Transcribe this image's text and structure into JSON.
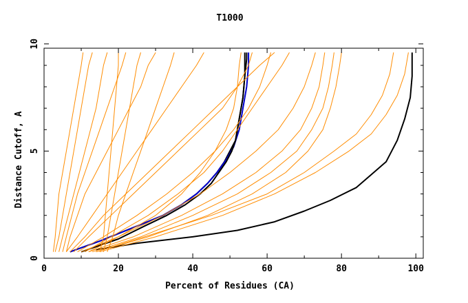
{
  "chart_data": {
    "type": "line",
    "title": "T1000",
    "xlabel": "Percent of Residues (CA)",
    "ylabel": "Distance Cutoff, A",
    "xlim": [
      0,
      102
    ],
    "ylim": [
      0,
      9.8
    ],
    "x_ticks": [
      0,
      20,
      40,
      60,
      80,
      100
    ],
    "y_ticks": [
      0,
      5,
      10
    ],
    "grid": false,
    "colors": {
      "orange": "#ff8c00",
      "black": "#000000",
      "blue": "#0000cc",
      "axis": "#000000",
      "background": "#ffffff"
    },
    "series": [
      {
        "color": "black",
        "x": [
          7,
          15,
          25,
          32,
          37,
          41,
          44,
          46.5,
          48.5,
          50,
          51.5,
          52.5,
          53.5,
          54,
          54.5,
          54.5
        ],
        "y": [
          0.3,
          0.8,
          1.5,
          2.0,
          2.5,
          3.0,
          3.5,
          4.0,
          4.5,
          5.0,
          5.5,
          6.5,
          7.5,
          8.5,
          9.3,
          9.6
        ]
      },
      {
        "color": "blue",
        "x": [
          7,
          15,
          25,
          32,
          37,
          41,
          44,
          46.5,
          49,
          51,
          52.5,
          53.5,
          54.5,
          55,
          55
        ],
        "y": [
          0.3,
          0.8,
          1.5,
          2.0,
          2.5,
          3.0,
          3.5,
          4.0,
          4.6,
          5.2,
          6.0,
          7.0,
          8.0,
          9.0,
          9.6
        ]
      },
      {
        "color": "black",
        "x": [
          10,
          20,
          27,
          33,
          38,
          42,
          45,
          47,
          49,
          50.5,
          51.5,
          52.5,
          53.5,
          54,
          54
        ],
        "y": [
          0.3,
          0.9,
          1.5,
          2.0,
          2.5,
          3.0,
          3.5,
          4.0,
          4.5,
          5.0,
          5.5,
          6.5,
          7.5,
          8.5,
          9.6
        ]
      },
      {
        "color": "black",
        "x": [
          14,
          25,
          40,
          52,
          62,
          70,
          77,
          84,
          88,
          92,
          95,
          97,
          98.5,
          99,
          99
        ],
        "y": [
          0.4,
          0.7,
          1.0,
          1.3,
          1.7,
          2.2,
          2.7,
          3.3,
          3.9,
          4.5,
          5.5,
          6.5,
          7.5,
          8.5,
          9.6
        ]
      },
      {
        "color": "orange",
        "x": [
          3,
          4,
          5,
          6,
          7,
          8,
          9,
          10,
          11,
          12,
          13
        ],
        "y": [
          0.3,
          1.0,
          2.0,
          3.0,
          4.0,
          5.0,
          6.0,
          7.0,
          8.0,
          9.0,
          9.6
        ]
      },
      {
        "color": "orange",
        "x": [
          4,
          5,
          6.5,
          8,
          9.5,
          11,
          12.5,
          14,
          15,
          16,
          17
        ],
        "y": [
          0.3,
          1.0,
          2.0,
          3.0,
          4.0,
          5.0,
          6.0,
          7.0,
          8.0,
          9.0,
          9.6
        ]
      },
      {
        "color": "orange",
        "x": [
          5,
          6,
          7.5,
          9,
          11,
          13,
          15,
          17,
          19,
          21,
          22
        ],
        "y": [
          0.3,
          1.0,
          2.0,
          3.0,
          4.0,
          5.0,
          6.0,
          7.0,
          8.0,
          9.0,
          9.6
        ]
      },
      {
        "color": "orange",
        "x": [
          6,
          7,
          9,
          11,
          14,
          17,
          20,
          23,
          26,
          28,
          30
        ],
        "y": [
          0.3,
          1.0,
          2.0,
          3.0,
          4.0,
          5.0,
          6.0,
          7.0,
          8.0,
          9.0,
          9.6
        ]
      },
      {
        "color": "orange",
        "x": [
          2.5,
          3,
          3.5,
          4,
          5,
          6,
          7,
          8,
          9,
          10,
          10.5
        ],
        "y": [
          0.3,
          1.0,
          2.0,
          3.0,
          4.0,
          5.0,
          6.0,
          7.0,
          8.0,
          9.0,
          9.6
        ]
      },
      {
        "color": "orange",
        "x": [
          15,
          16,
          16.5,
          17,
          17.5,
          18,
          18.5,
          19,
          19.5,
          20,
          20
        ],
        "y": [
          0.3,
          1.0,
          2.0,
          3.0,
          4.0,
          5.0,
          6.0,
          7.0,
          8.0,
          9.0,
          9.6
        ]
      },
      {
        "color": "orange",
        "x": [
          16,
          17,
          18,
          19,
          20,
          21,
          22,
          23,
          24,
          25,
          26
        ],
        "y": [
          0.3,
          1.0,
          2.0,
          3.0,
          4.0,
          5.0,
          6.0,
          7.0,
          8.0,
          9.0,
          9.6
        ]
      },
      {
        "color": "orange",
        "x": [
          17,
          18.5,
          20,
          22,
          24,
          26,
          28,
          30,
          32,
          34,
          35
        ],
        "y": [
          0.3,
          1.0,
          2.0,
          3.0,
          4.0,
          5.0,
          6.0,
          7.0,
          8.0,
          9.0,
          9.6
        ]
      },
      {
        "color": "orange",
        "x": [
          8,
          12,
          18,
          24,
          30,
          36,
          42,
          48,
          52,
          55,
          56
        ],
        "y": [
          0.3,
          1.0,
          2.0,
          3.0,
          4.0,
          5.0,
          6.0,
          7.0,
          8.0,
          9.0,
          9.6
        ]
      },
      {
        "color": "orange",
        "x": [
          9,
          16,
          25,
          33,
          40,
          46,
          51,
          55,
          58,
          60,
          61
        ],
        "y": [
          0.3,
          1.0,
          2.0,
          3.0,
          4.0,
          5.0,
          6.0,
          7.0,
          8.0,
          9.0,
          9.6
        ]
      },
      {
        "color": "orange",
        "x": [
          10,
          20,
          32,
          42,
          50,
          57,
          63,
          67,
          70,
          72,
          73
        ],
        "y": [
          0.3,
          1.0,
          2.0,
          3.0,
          4.0,
          5.0,
          6.0,
          7.0,
          8.0,
          9.0,
          9.6
        ]
      },
      {
        "color": "orange",
        "x": [
          12,
          24,
          37,
          48,
          57,
          64,
          69,
          72,
          74,
          75,
          75.5
        ],
        "y": [
          0.3,
          1.0,
          2.0,
          3.0,
          4.0,
          5.0,
          6.0,
          7.0,
          8.0,
          9.0,
          9.6
        ]
      },
      {
        "color": "orange",
        "x": [
          13,
          26,
          40,
          52,
          61,
          68,
          72,
          75,
          76.5,
          77.5,
          78
        ],
        "y": [
          0.3,
          1.0,
          2.0,
          3.0,
          4.0,
          5.0,
          6.0,
          7.0,
          8.0,
          9.0,
          9.6
        ]
      },
      {
        "color": "orange",
        "x": [
          14,
          28,
          44,
          56,
          65,
          71,
          75,
          77,
          78.5,
          79.5,
          80
        ],
        "y": [
          0.3,
          1.0,
          2.0,
          3.0,
          4.0,
          5.0,
          6.0,
          7.0,
          8.0,
          9.0,
          9.6
        ]
      },
      {
        "color": "orange",
        "x": [
          15,
          30,
          48,
          62,
          73,
          82,
          88,
          92,
          95,
          97,
          98
        ],
        "y": [
          0.3,
          1.0,
          2.0,
          3.0,
          4.0,
          5.0,
          5.8,
          6.7,
          7.6,
          8.6,
          9.6
        ]
      },
      {
        "color": "orange",
        "x": [
          14,
          27,
          45,
          60,
          70,
          78,
          84,
          88,
          91,
          93,
          94
        ],
        "y": [
          0.3,
          1.0,
          2.0,
          3.0,
          4.0,
          5.0,
          5.8,
          6.7,
          7.6,
          8.6,
          9.6
        ]
      },
      {
        "color": "orange",
        "x": [
          11,
          18,
          28,
          36,
          43,
          48,
          52,
          56,
          60,
          64,
          66
        ],
        "y": [
          0.3,
          1.0,
          2.0,
          3.0,
          4.0,
          5.0,
          6.0,
          7.0,
          8.0,
          9.0,
          9.6
        ]
      },
      {
        "color": "orange",
        "x": [
          12,
          20,
          30,
          37,
          42,
          46,
          49,
          51,
          52,
          52.5,
          53
        ],
        "y": [
          0.3,
          1.0,
          2.0,
          3.0,
          4.0,
          5.0,
          6.0,
          7.0,
          8.0,
          9.0,
          9.6
        ]
      },
      {
        "color": "orange",
        "x": [
          7,
          11,
          16,
          22,
          28,
          34,
          40,
          46,
          52,
          58,
          62
        ],
        "y": [
          0.3,
          1.0,
          2.0,
          3.0,
          4.0,
          5.0,
          6.0,
          7.0,
          8.0,
          9.0,
          9.6
        ]
      },
      {
        "color": "orange",
        "x": [
          6,
          9,
          13,
          17,
          21,
          25,
          29,
          33,
          37,
          41,
          43
        ],
        "y": [
          0.3,
          1.0,
          2.0,
          3.0,
          4.0,
          5.0,
          6.0,
          7.0,
          8.0,
          9.0,
          9.6
        ]
      }
    ]
  }
}
